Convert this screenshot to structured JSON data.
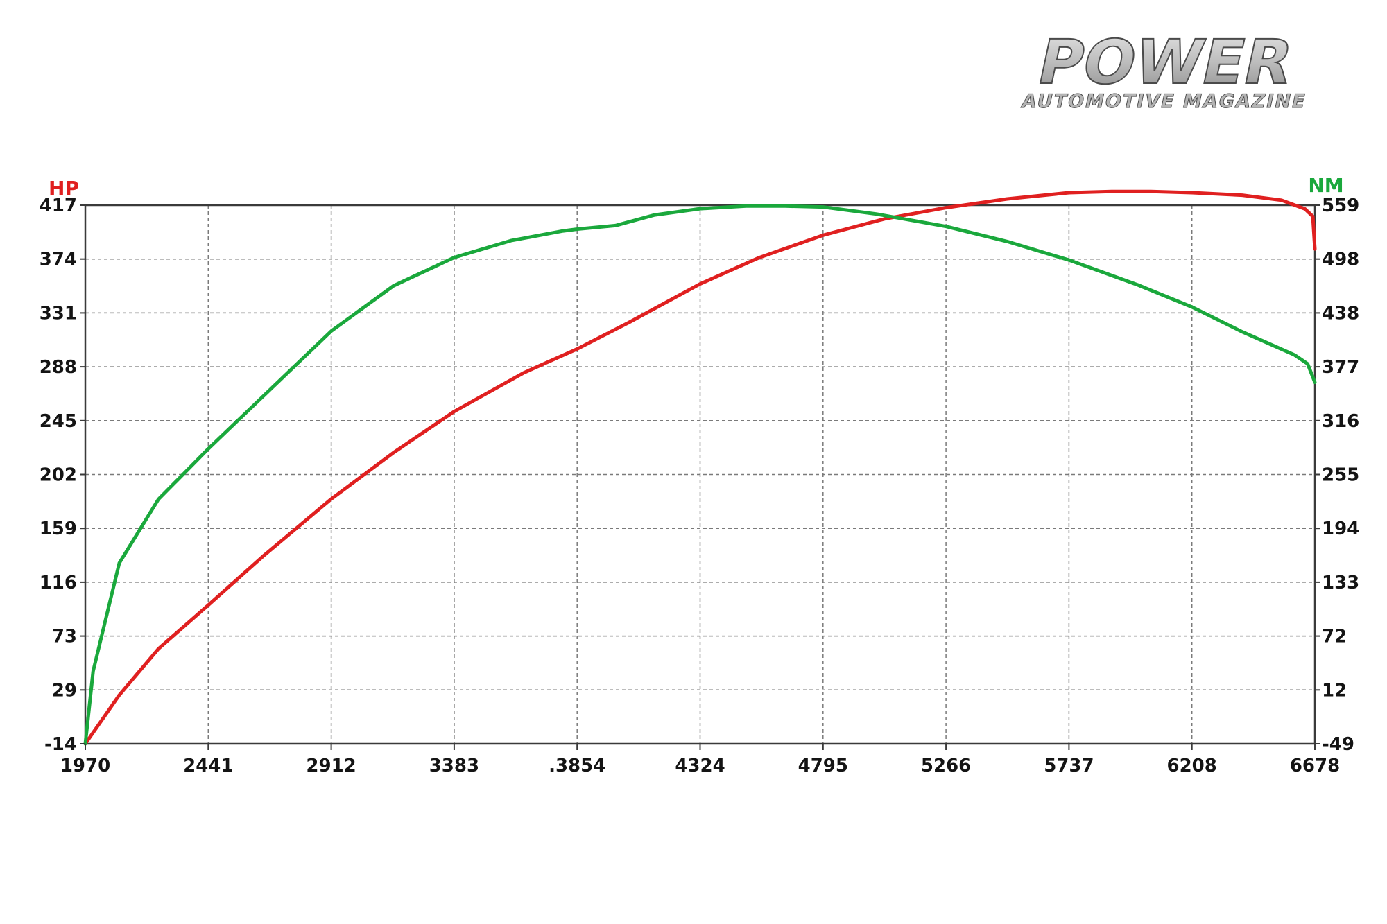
{
  "logo": {
    "title": "POWER",
    "subtitle": "AUTOMOTIVE MAGAZINE"
  },
  "chart_data": {
    "type": "line",
    "grid": true,
    "x_ticks": [
      "1970",
      "2441",
      "2912",
      "3383",
      ".3854",
      "4324",
      "4795",
      "5266",
      "5737",
      "6208",
      "6678"
    ],
    "xlim": [
      1970,
      6678
    ],
    "left_axis": {
      "label": "HP",
      "color": "#e02020",
      "ticks": [
        "417",
        "374",
        "331",
        "288",
        "245",
        "202",
        "159",
        "116",
        "73",
        "29",
        "-14"
      ],
      "ylim": [
        -14,
        417
      ]
    },
    "right_axis": {
      "label": "NM",
      "color": "#1aa83c",
      "ticks": [
        "559",
        "498",
        "438",
        "377",
        "316",
        "255",
        "194",
        "133",
        "72",
        "12",
        "-49"
      ],
      "ylim": [
        -49,
        559
      ]
    },
    "series": [
      {
        "name": "HP",
        "axis": "left",
        "color": "#e02020",
        "x": [
          1970,
          2100,
          2250,
          2441,
          2650,
          2912,
          3150,
          3383,
          3650,
          3854,
          4050,
          4324,
          4550,
          4795,
          5030,
          5266,
          5500,
          5737,
          5900,
          6050,
          6208,
          6400,
          6550,
          6640,
          6670,
          6678
        ],
        "y": [
          -14,
          25,
          62,
          97,
          136,
          182,
          219,
          252,
          283,
          302,
          323,
          354,
          375,
          393,
          406,
          415,
          422,
          427,
          428,
          428,
          427,
          425,
          421,
          414,
          408,
          382
        ]
      },
      {
        "name": "NM",
        "axis": "right",
        "color": "#1aa83c",
        "x": [
          1970,
          2000,
          2100,
          2250,
          2441,
          2650,
          2912,
          3150,
          3383,
          3600,
          3800,
          3854,
          4000,
          4150,
          4324,
          4500,
          4650,
          4795,
          5000,
          5266,
          5500,
          5737,
          6000,
          6208,
          6400,
          6600,
          6650,
          6678
        ],
        "y": [
          -49,
          33,
          155,
          227,
          284,
          343,
          417,
          468,
          500,
          519,
          530,
          532,
          536,
          548,
          555,
          558,
          558,
          557,
          549,
          535,
          518,
          497,
          469,
          444,
          416,
          390,
          380,
          359
        ]
      }
    ]
  }
}
